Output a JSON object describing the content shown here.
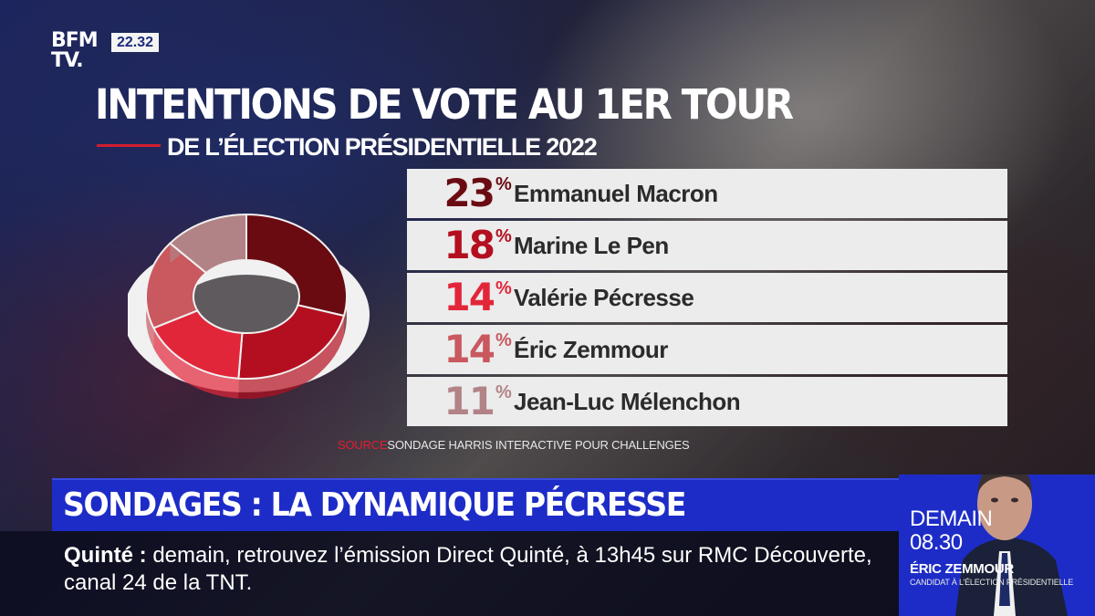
{
  "header": {
    "logo_line1": "BFM",
    "logo_line2": "TV.",
    "clock": "22.32"
  },
  "graphic": {
    "title": "INTENTIONS DE VOTE AU 1ER TOUR",
    "subtitle": "DE L’ÉLECTION PRÉSIDENTIELLE 2022",
    "percent_sign": "%",
    "results": [
      {
        "value": "23",
        "candidate": "Emmanuel Macron",
        "color": "#6a0b12"
      },
      {
        "value": "18",
        "candidate": "Marine Le Pen",
        "color": "#b40f20"
      },
      {
        "value": "14",
        "candidate": "Valérie Pécresse",
        "color": "#e2263a"
      },
      {
        "value": "14",
        "candidate": "Éric Zemmour",
        "color": "#c9585f"
      },
      {
        "value": "11",
        "candidate": "Jean-Luc Mélenchon",
        "color": "#b28386"
      }
    ],
    "source_label": "SOURCE",
    "source_text": "SONDAGE HARRIS INTERACTIVE POUR CHALLENGES"
  },
  "headline": "SONDAGES : LA DYNAMIQUE PÉCRESSE",
  "ticker": {
    "lead": "Quinté  :",
    "text": " demain, retrouvez l’émission Direct Quinté, à 13h45 sur RMC Découverte, canal 24 de la TNT."
  },
  "promo": {
    "day": "DEMAIN",
    "time": "08.30",
    "name": "ÉRIC ZEMMOUR",
    "role": "CANDIDAT À L’ÉLECTION PRÉSIDENTIELLE"
  },
  "colors": {
    "accent_red": "#d31c2e",
    "headline_blue": "#1d2cc7"
  }
}
